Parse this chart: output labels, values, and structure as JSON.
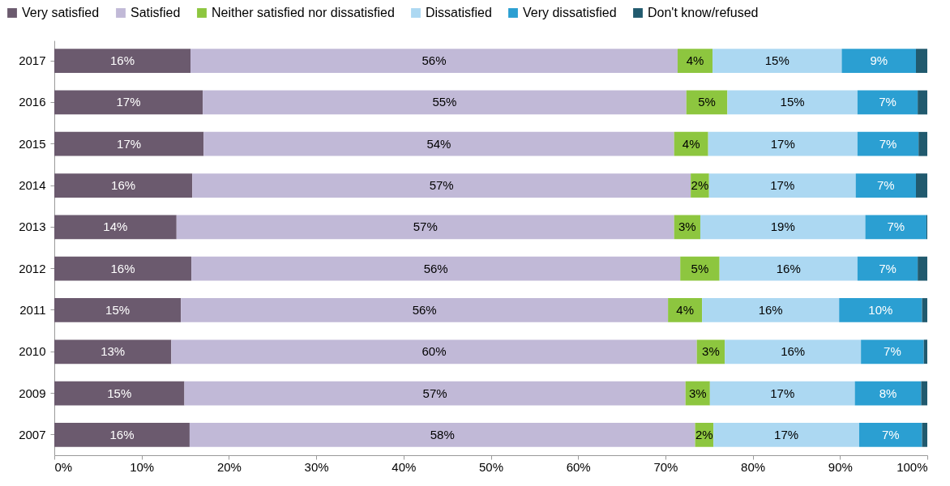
{
  "chart_data": {
    "type": "bar",
    "orientation": "horizontal",
    "stacked": true,
    "categories": [
      "2017",
      "2016",
      "2015",
      "2014",
      "2013",
      "2012",
      "2011",
      "2010",
      "2009",
      "2007"
    ],
    "series": [
      {
        "name": "Very satisfied",
        "color": "#6b5a6e",
        "values": [
          15.6,
          17.0,
          17.1,
          15.8,
          14.0,
          15.7,
          14.5,
          13.4,
          14.9,
          15.5
        ],
        "value_labels": [
          "16%",
          "17%",
          "17%",
          "16%",
          "14%",
          "16%",
          "15%",
          "13%",
          "15%",
          "16%"
        ]
      },
      {
        "name": "Satisfied",
        "color": "#c1b9d7",
        "values": [
          55.8,
          55.4,
          53.9,
          57.1,
          57.0,
          56.0,
          55.8,
          60.2,
          57.4,
          57.9
        ],
        "value_labels": [
          "56%",
          "55%",
          "54%",
          "57%",
          "57%",
          "56%",
          "56%",
          "60%",
          "57%",
          "58%"
        ]
      },
      {
        "name": "Neither satisfied nor dissatisfied",
        "color": "#8dc63f",
        "values": [
          4.0,
          4.7,
          3.9,
          2.1,
          3.0,
          4.5,
          3.9,
          3.2,
          2.8,
          2.1
        ],
        "value_labels": [
          "4%",
          "5%",
          "4%",
          "2%",
          "3%",
          "5%",
          "4%",
          "3%",
          "3%",
          "2%"
        ]
      },
      {
        "name": "Dissatisfied",
        "color": "#acd8f2",
        "values": [
          14.8,
          14.9,
          17.1,
          16.8,
          18.9,
          15.8,
          15.7,
          15.6,
          16.6,
          16.7
        ],
        "value_labels": [
          "15%",
          "15%",
          "17%",
          "17%",
          "19%",
          "16%",
          "16%",
          "16%",
          "17%",
          "17%"
        ]
      },
      {
        "name": "Very dissatisfied",
        "color": "#2b9fd2",
        "values": [
          8.5,
          6.9,
          7.0,
          6.9,
          7.0,
          6.9,
          9.5,
          7.2,
          7.6,
          7.2
        ],
        "value_labels": [
          "9%",
          "7%",
          "7%",
          "7%",
          "7%",
          "7%",
          "10%",
          "7%",
          "8%",
          "7%"
        ]
      },
      {
        "name": "Don't know/refused",
        "color": "#215a6e",
        "values": [
          1.3,
          1.1,
          1.0,
          1.3,
          0.1,
          1.1,
          0.6,
          0.4,
          0.7,
          0.6
        ]
      }
    ],
    "xlim": [
      0,
      100
    ],
    "xticks": [
      {
        "value": 0,
        "label": "0%"
      },
      {
        "value": 10,
        "label": "10%"
      },
      {
        "value": 20,
        "label": "20%"
      },
      {
        "value": 30,
        "label": "30%"
      },
      {
        "value": 40,
        "label": "40%"
      },
      {
        "value": 50,
        "label": "50%"
      },
      {
        "value": 60,
        "label": "60%"
      },
      {
        "value": 70,
        "label": "70%"
      },
      {
        "value": 80,
        "label": "80%"
      },
      {
        "value": 90,
        "label": "90%"
      },
      {
        "value": 100,
        "label": "100%"
      }
    ],
    "grid": false,
    "legend": "top"
  }
}
